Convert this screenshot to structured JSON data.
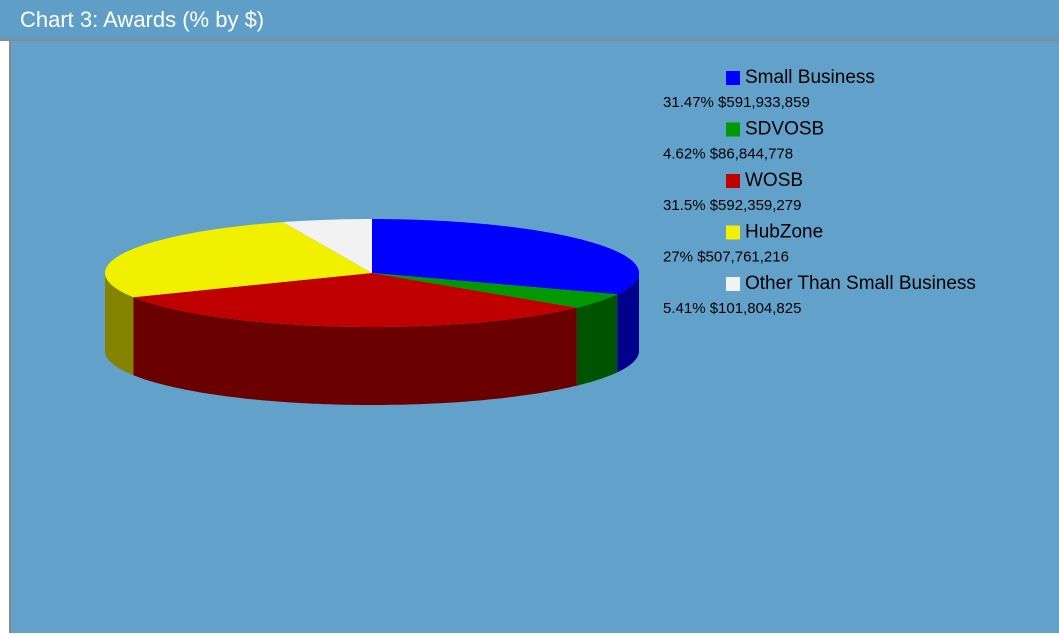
{
  "chart_data": {
    "type": "pie3d",
    "title": "Chart 3: Awards (% by $)",
    "categories": [
      "Small Business",
      "SDVOSB",
      "WOSB",
      "HubZone",
      "Other Than Small Business"
    ],
    "values": [
      31.47,
      4.62,
      31.5,
      27,
      5.41
    ],
    "value_labels": [
      "31.47% $591,933,859",
      "4.62% $86,844,778",
      "31.5% $592,359,279",
      "27% $507,761,216",
      "5.41% $101,804,825"
    ],
    "colors": [
      "#0000ff",
      "#009900",
      "#c00000",
      "#f0f000",
      "#f2f2f2"
    ],
    "legend": "right"
  }
}
